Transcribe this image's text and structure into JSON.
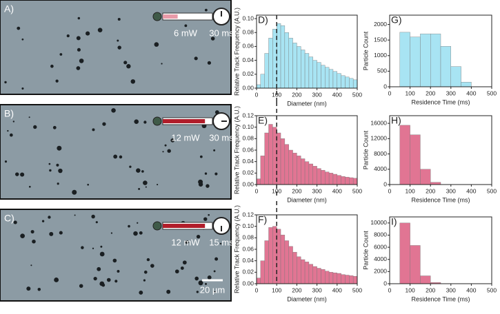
{
  "images": [
    {
      "label": "A)",
      "power": "6 mW",
      "time": "30 ms"
    },
    {
      "label": "B)",
      "power": "12 mW",
      "time": "30 ms"
    },
    {
      "label": "C)",
      "power": "12 mW",
      "time": "15 ms"
    }
  ],
  "scale_bar": "20 µm",
  "chart_data": [
    {
      "type": "histogram",
      "label": "D)",
      "xlabel": "Diameter (nm)",
      "ylabel": "Relative Track Frequency (A.U.)",
      "color": "#a8e4f3",
      "bins": [
        0,
        20,
        40,
        60,
        80,
        100,
        120,
        140,
        160,
        180,
        200,
        220,
        240,
        260,
        280,
        300,
        320,
        340,
        360,
        380,
        400,
        420,
        440,
        460,
        480,
        500
      ],
      "values": [
        0.005,
        0.02,
        0.05,
        0.072,
        0.085,
        0.093,
        0.09,
        0.08,
        0.072,
        0.065,
        0.06,
        0.055,
        0.05,
        0.045,
        0.04,
        0.037,
        0.033,
        0.03,
        0.027,
        0.024,
        0.021,
        0.018,
        0.016,
        0.014,
        0.012
      ],
      "xlim": [
        0,
        500
      ],
      "ylim": [
        0,
        0.105
      ],
      "xticks": [
        0,
        100,
        200,
        300,
        400,
        500
      ],
      "yticks": [
        {
          "value": 0,
          "label": "0.00"
        },
        {
          "value": 0.02,
          "label": "0.02"
        },
        {
          "value": 0.04,
          "label": "0.04"
        },
        {
          "value": 0.06,
          "label": "0.06"
        },
        {
          "value": 0.08,
          "label": "0.08"
        },
        {
          "value": 0.1,
          "label": "0.10"
        }
      ],
      "vline": 100
    },
    {
      "type": "histogram",
      "label": "E)",
      "xlabel": "Diameter (nm)",
      "ylabel": "Relative Track Frequency (A.U.)",
      "color": "#e17593",
      "bins": [
        0,
        20,
        40,
        60,
        80,
        100,
        120,
        140,
        160,
        180,
        200,
        220,
        240,
        260,
        280,
        300,
        320,
        340,
        360,
        380,
        400,
        420,
        440,
        460,
        480,
        500
      ],
      "values": [
        0.01,
        0.05,
        0.09,
        0.105,
        0.1,
        0.09,
        0.08,
        0.07,
        0.06,
        0.055,
        0.05,
        0.045,
        0.04,
        0.036,
        0.032,
        0.028,
        0.025,
        0.022,
        0.02,
        0.018,
        0.016,
        0.014,
        0.013,
        0.012,
        0.011
      ],
      "xlim": [
        0,
        500
      ],
      "ylim": [
        0,
        0.12
      ],
      "xticks": [
        0,
        100,
        200,
        300,
        400,
        500
      ],
      "yticks": [
        {
          "value": 0,
          "label": "0.00"
        },
        {
          "value": 0.02,
          "label": "0.02"
        },
        {
          "value": 0.04,
          "label": "0.04"
        },
        {
          "value": 0.06,
          "label": "0.06"
        },
        {
          "value": 0.08,
          "label": "0.08"
        },
        {
          "value": 0.1,
          "label": "0.10"
        },
        {
          "value": 0.12,
          "label": "0.12"
        }
      ],
      "vline": 100
    },
    {
      "type": "histogram",
      "label": "F)",
      "xlabel": "Diameter (nm)",
      "ylabel": "Relative Track Frequency (A.U.)",
      "color": "#e17593",
      "bins": [
        0,
        20,
        40,
        60,
        80,
        100,
        120,
        140,
        160,
        180,
        200,
        220,
        240,
        260,
        280,
        300,
        320,
        340,
        360,
        380,
        400,
        420,
        440,
        460,
        480,
        500
      ],
      "values": [
        0.01,
        0.04,
        0.075,
        0.098,
        0.1,
        0.095,
        0.085,
        0.075,
        0.065,
        0.055,
        0.047,
        0.042,
        0.038,
        0.034,
        0.03,
        0.027,
        0.025,
        0.022,
        0.02,
        0.019,
        0.018,
        0.016,
        0.015,
        0.014,
        0.013
      ],
      "xlim": [
        0,
        500
      ],
      "ylim": [
        0,
        0.12
      ],
      "xticks": [
        0,
        100,
        200,
        300,
        400,
        500
      ],
      "yticks": [
        {
          "value": 0,
          "label": "0.00"
        },
        {
          "value": 0.02,
          "label": "0.02"
        },
        {
          "value": 0.04,
          "label": "0.04"
        },
        {
          "value": 0.06,
          "label": "0.06"
        },
        {
          "value": 0.08,
          "label": "0.08"
        },
        {
          "value": 0.1,
          "label": "0.10"
        },
        {
          "value": 0.12,
          "label": "0.12"
        }
      ],
      "vline": 100
    },
    {
      "type": "histogram",
      "label": "G)",
      "xlabel": "Residence Time (ms)",
      "ylabel": "Particle Count",
      "color": "#a8e4f3",
      "bins": [
        50,
        100,
        150,
        200,
        250,
        300,
        350,
        400
      ],
      "values": [
        1750,
        1600,
        1700,
        1700,
        1300,
        650,
        150
      ],
      "xlim": [
        0,
        500
      ],
      "ylim": [
        0,
        2300
      ],
      "xticks": [
        0,
        100,
        200,
        300,
        400,
        500
      ],
      "yticks": [
        0,
        500,
        1000,
        1500,
        2000
      ]
    },
    {
      "type": "histogram",
      "label": "H)",
      "xlabel": "Residence Time (ms)",
      "ylabel": "Particle Count",
      "color": "#e17593",
      "bins": [
        50,
        100,
        150,
        200,
        250
      ],
      "values": [
        15500,
        13000,
        4000,
        600
      ],
      "xlim": [
        0,
        500
      ],
      "ylim": [
        0,
        18000
      ],
      "xticks": [
        0,
        100,
        200,
        300,
        400,
        500
      ],
      "yticks": [
        0,
        4000,
        8000,
        12000,
        16000
      ]
    },
    {
      "type": "histogram",
      "label": "I)",
      "xlabel": "Residence Time (ms)",
      "ylabel": "Particle Count",
      "color": "#e17593",
      "bins": [
        50,
        100,
        150,
        200,
        250
      ],
      "values": [
        10000,
        6300,
        1300,
        200
      ],
      "xlim": [
        0,
        500
      ],
      "ylim": [
        0,
        11000
      ],
      "xticks": [
        0,
        100,
        200,
        300,
        400,
        500
      ],
      "yticks": [
        0,
        2000,
        4000,
        6000,
        8000,
        10000
      ]
    }
  ]
}
